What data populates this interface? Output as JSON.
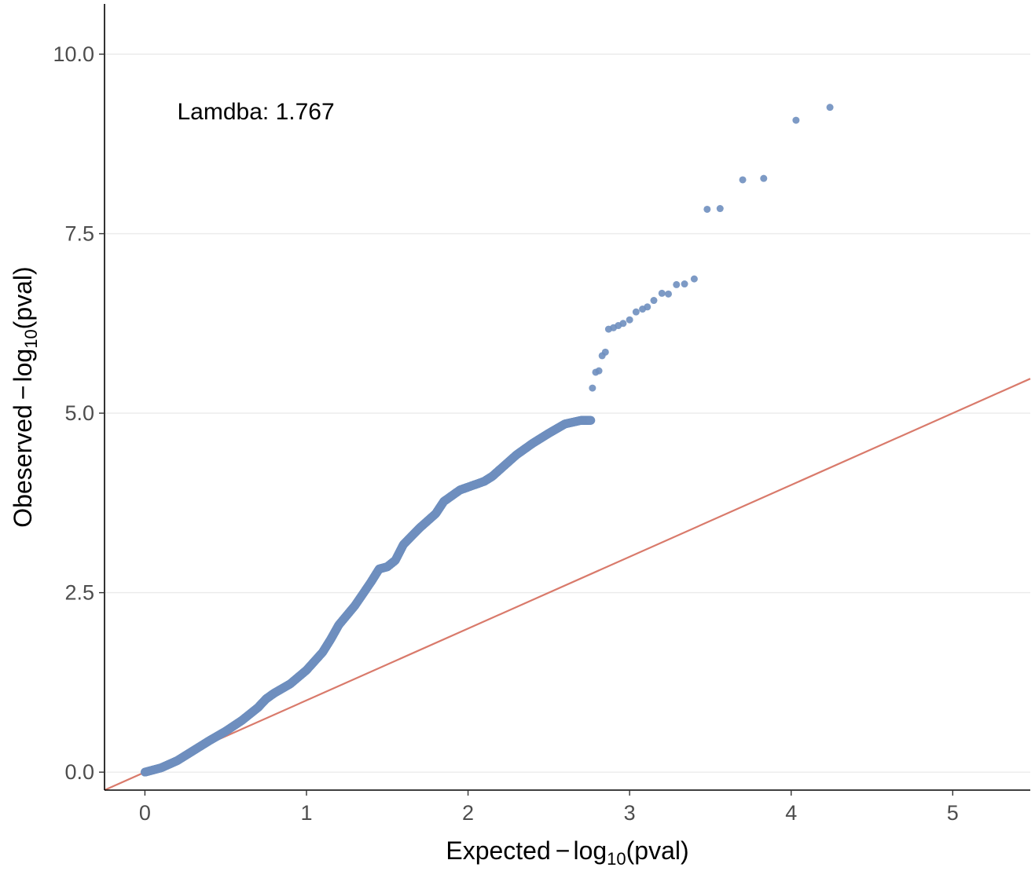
{
  "chart_data": {
    "type": "scatter",
    "xlabel": {
      "prefix": "Expected",
      "minus": "−",
      "log": "log",
      "sub": "10",
      "arg": "(pval)"
    },
    "ylabel": {
      "prefix": "Obeserved",
      "minus": "−",
      "log": "log",
      "sub": "10",
      "arg": "(pval)"
    },
    "annotation": "Lamdba: 1.767",
    "annotation_pos": {
      "x": 0.2,
      "y": 9.2
    },
    "xlim": [
      -0.25,
      5.48
    ],
    "ylim": [
      -0.25,
      10.7
    ],
    "x_ticks": [
      0,
      1,
      2,
      3,
      4,
      5
    ],
    "x_tick_labels": [
      "0",
      "1",
      "2",
      "3",
      "4",
      "5"
    ],
    "y_ticks": [
      0,
      2.5,
      5,
      7.5,
      10
    ],
    "y_tick_labels": [
      "0.0",
      "2.5",
      "5.0",
      "7.5",
      "10.0"
    ],
    "grid": "horizontal-major",
    "reference_line": {
      "slope": 1,
      "intercept": 0,
      "color": "#d97a6b"
    },
    "point_color": "#6f8fbf",
    "curve_points": [
      [
        0.0,
        0.0
      ],
      [
        0.1,
        0.06
      ],
      [
        0.2,
        0.16
      ],
      [
        0.3,
        0.3
      ],
      [
        0.4,
        0.44
      ],
      [
        0.5,
        0.57
      ],
      [
        0.6,
        0.72
      ],
      [
        0.7,
        0.9
      ],
      [
        0.75,
        1.02
      ],
      [
        0.8,
        1.1
      ],
      [
        0.9,
        1.23
      ],
      [
        1.0,
        1.42
      ],
      [
        1.1,
        1.67
      ],
      [
        1.15,
        1.85
      ],
      [
        1.2,
        2.05
      ],
      [
        1.3,
        2.32
      ],
      [
        1.4,
        2.65
      ],
      [
        1.45,
        2.83
      ],
      [
        1.5,
        2.86
      ],
      [
        1.55,
        2.95
      ],
      [
        1.6,
        3.17
      ],
      [
        1.7,
        3.4
      ],
      [
        1.8,
        3.6
      ],
      [
        1.85,
        3.77
      ],
      [
        1.95,
        3.93
      ],
      [
        2.0,
        3.97
      ],
      [
        2.1,
        4.05
      ],
      [
        2.15,
        4.12
      ],
      [
        2.2,
        4.22
      ],
      [
        2.3,
        4.42
      ],
      [
        2.4,
        4.58
      ],
      [
        2.5,
        4.72
      ],
      [
        2.6,
        4.85
      ],
      [
        2.7,
        4.9
      ],
      [
        2.76,
        4.9
      ]
    ],
    "outlier_points": [
      [
        2.77,
        5.35
      ],
      [
        2.79,
        5.57
      ],
      [
        2.81,
        5.59
      ],
      [
        2.83,
        5.8
      ],
      [
        2.85,
        5.85
      ],
      [
        2.87,
        6.17
      ],
      [
        2.9,
        6.19
      ],
      [
        2.93,
        6.22
      ],
      [
        2.96,
        6.25
      ],
      [
        3.0,
        6.3
      ],
      [
        3.04,
        6.41
      ],
      [
        3.08,
        6.45
      ],
      [
        3.11,
        6.48
      ],
      [
        3.15,
        6.57
      ],
      [
        3.2,
        6.67
      ],
      [
        3.24,
        6.66
      ],
      [
        3.29,
        6.79
      ],
      [
        3.34,
        6.8
      ],
      [
        3.4,
        6.87
      ],
      [
        3.48,
        7.84
      ],
      [
        3.56,
        7.85
      ],
      [
        3.7,
        8.25
      ],
      [
        3.83,
        8.27
      ],
      [
        4.03,
        9.08
      ],
      [
        4.24,
        9.26
      ]
    ]
  }
}
